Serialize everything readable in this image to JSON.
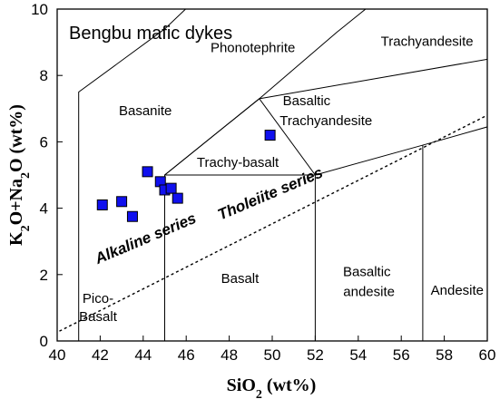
{
  "chart_data": {
    "type": "scatter",
    "title": "Bengbu mafic dykes",
    "xlabel": "SiO2 (wt%)",
    "ylabel": "K2O+Na2O (wt%)",
    "xlim": [
      40,
      60
    ],
    "ylim": [
      0,
      10
    ],
    "x_ticks": [
      "40",
      "42",
      "44",
      "46",
      "48",
      "50",
      "52",
      "54",
      "56",
      "58",
      "60"
    ],
    "y_ticks": [
      "0",
      "2",
      "4",
      "6",
      "8",
      "10"
    ],
    "grid": false,
    "marker": {
      "shape": "square",
      "color": "#1010ee"
    },
    "points": [
      {
        "x": 42.1,
        "y": 4.1
      },
      {
        "x": 43.0,
        "y": 4.2
      },
      {
        "x": 43.5,
        "y": 3.75
      },
      {
        "x": 44.2,
        "y": 5.1
      },
      {
        "x": 44.8,
        "y": 4.8
      },
      {
        "x": 45.0,
        "y": 4.55
      },
      {
        "x": 45.3,
        "y": 4.6
      },
      {
        "x": 45.6,
        "y": 4.3
      },
      {
        "x": 49.9,
        "y": 6.2
      }
    ],
    "field_boundaries": [
      [
        [
          41,
          0
        ],
        [
          41,
          7.5
        ],
        [
          45,
          9.4
        ],
        [
          48.4,
          11.5
        ]
      ],
      [
        [
          45,
          0
        ],
        [
          45,
          5
        ],
        [
          49.4,
          7.3
        ],
        [
          53,
          9.3
        ],
        [
          57.6,
          11.7
        ]
      ],
      [
        [
          52,
          0
        ],
        [
          52,
          5
        ],
        [
          57,
          5.9
        ],
        [
          63,
          7
        ]
      ],
      [
        [
          57,
          0
        ],
        [
          57,
          5.9
        ]
      ],
      [
        [
          45,
          5
        ],
        [
          52,
          5
        ],
        [
          49.4,
          7.3
        ],
        [
          45,
          5
        ]
      ],
      [
        [
          49.4,
          7.3
        ],
        [
          61,
          8.6
        ]
      ]
    ],
    "series_divider": [
      [
        39.2,
        0
      ],
      [
        65.5,
        8.6
      ]
    ],
    "field_labels": [
      {
        "text": "Phonotephrite",
        "x": 49.1,
        "y": 8.7
      },
      {
        "text": "Trachyandesite",
        "x": 57.2,
        "y": 8.9
      },
      {
        "text": "Basanite",
        "x": 44.1,
        "y": 6.8
      },
      {
        "text": "Basaltic",
        "x": 51.6,
        "y": 7.1
      },
      {
        "text": "Trachyandesite",
        "x": 52.5,
        "y": 6.5
      },
      {
        "text": "Trachy-basalt",
        "x": 48.4,
        "y": 5.25
      },
      {
        "text": "Basalt",
        "x": 48.5,
        "y": 1.75
      },
      {
        "text": "Basaltic",
        "x": 54.4,
        "y": 1.95
      },
      {
        "text": "andesite",
        "x": 54.5,
        "y": 1.35
      },
      {
        "text": "Andesite",
        "x": 58.6,
        "y": 1.4
      },
      {
        "text": "Pico-",
        "x": 41.9,
        "y": 1.15
      },
      {
        "text": "Basalt",
        "x": 41.9,
        "y": 0.6
      }
    ],
    "series_labels": [
      {
        "text": "Alkaline series",
        "x": 44.2,
        "y": 2.95,
        "angle": -23
      },
      {
        "text": "Tholeiite  series",
        "x": 50.0,
        "y": 4.3,
        "angle": -23
      }
    ]
  }
}
